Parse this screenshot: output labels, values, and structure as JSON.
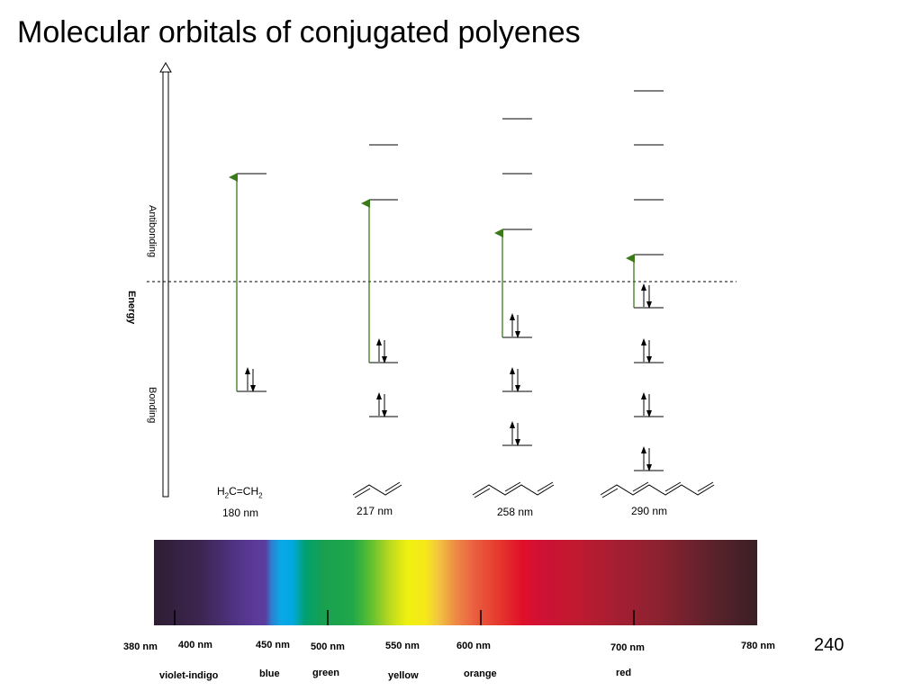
{
  "title": "Molecular orbitals of conjugated polyenes",
  "page_number": "240",
  "energy_axis": {
    "label": "Energy",
    "antibonding_label": "Antibonding",
    "bonding_label": "Bonding"
  },
  "molecules": [
    {
      "formula_parts": [
        "H",
        "2",
        "C=CH",
        "2"
      ],
      "wavelength": "180 nm",
      "bonding_levels": 1,
      "antibonding_levels": 1
    },
    {
      "wavelength": "217 nm",
      "bonding_levels": 2,
      "antibonding_levels": 2
    },
    {
      "wavelength": "258 nm",
      "bonding_levels": 3,
      "antibonding_levels": 3
    },
    {
      "wavelength": "290 nm",
      "bonding_levels": 4,
      "antibonding_levels": 4
    }
  ],
  "spectrum": {
    "tick_labels": [
      "380 nm",
      "400 nm",
      "450 nm",
      "500 nm",
      "550 nm",
      "600 nm",
      "700 nm",
      "780 nm"
    ],
    "color_names": [
      "violet-indigo",
      "blue",
      "green",
      "yellow",
      "orange",
      "red"
    ]
  },
  "colors": {
    "transition_arrow": "#3a7a1a",
    "axis": "#000000"
  }
}
